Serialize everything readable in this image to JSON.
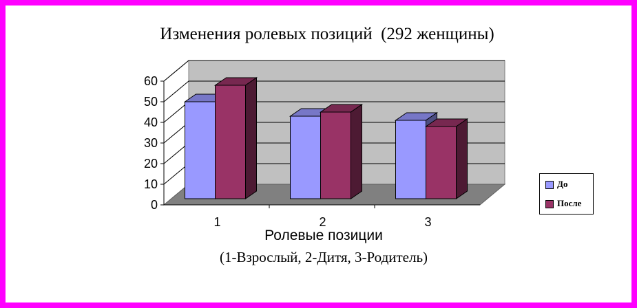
{
  "chart_data": {
    "type": "bar",
    "title": "Изменения ролевых позиций  (292 женщины)",
    "xlabel": "Ролевые позиции",
    "xlabel_note": "(1-Взрослый, 2-Дитя, 3-Родитель)",
    "ylabel": "",
    "categories": [
      "1",
      "2",
      "3"
    ],
    "series": [
      {
        "name": "До",
        "values": [
          47,
          40,
          38
        ],
        "color": "#9999ff"
      },
      {
        "name": "После",
        "values": [
          55,
          42,
          35
        ],
        "color": "#993366"
      }
    ],
    "ylim": [
      0,
      60
    ],
    "yticks": [
      "0",
      "10",
      "20",
      "30",
      "40",
      "50",
      "60"
    ],
    "grid": true,
    "legend_position": "right",
    "style": "3d"
  }
}
